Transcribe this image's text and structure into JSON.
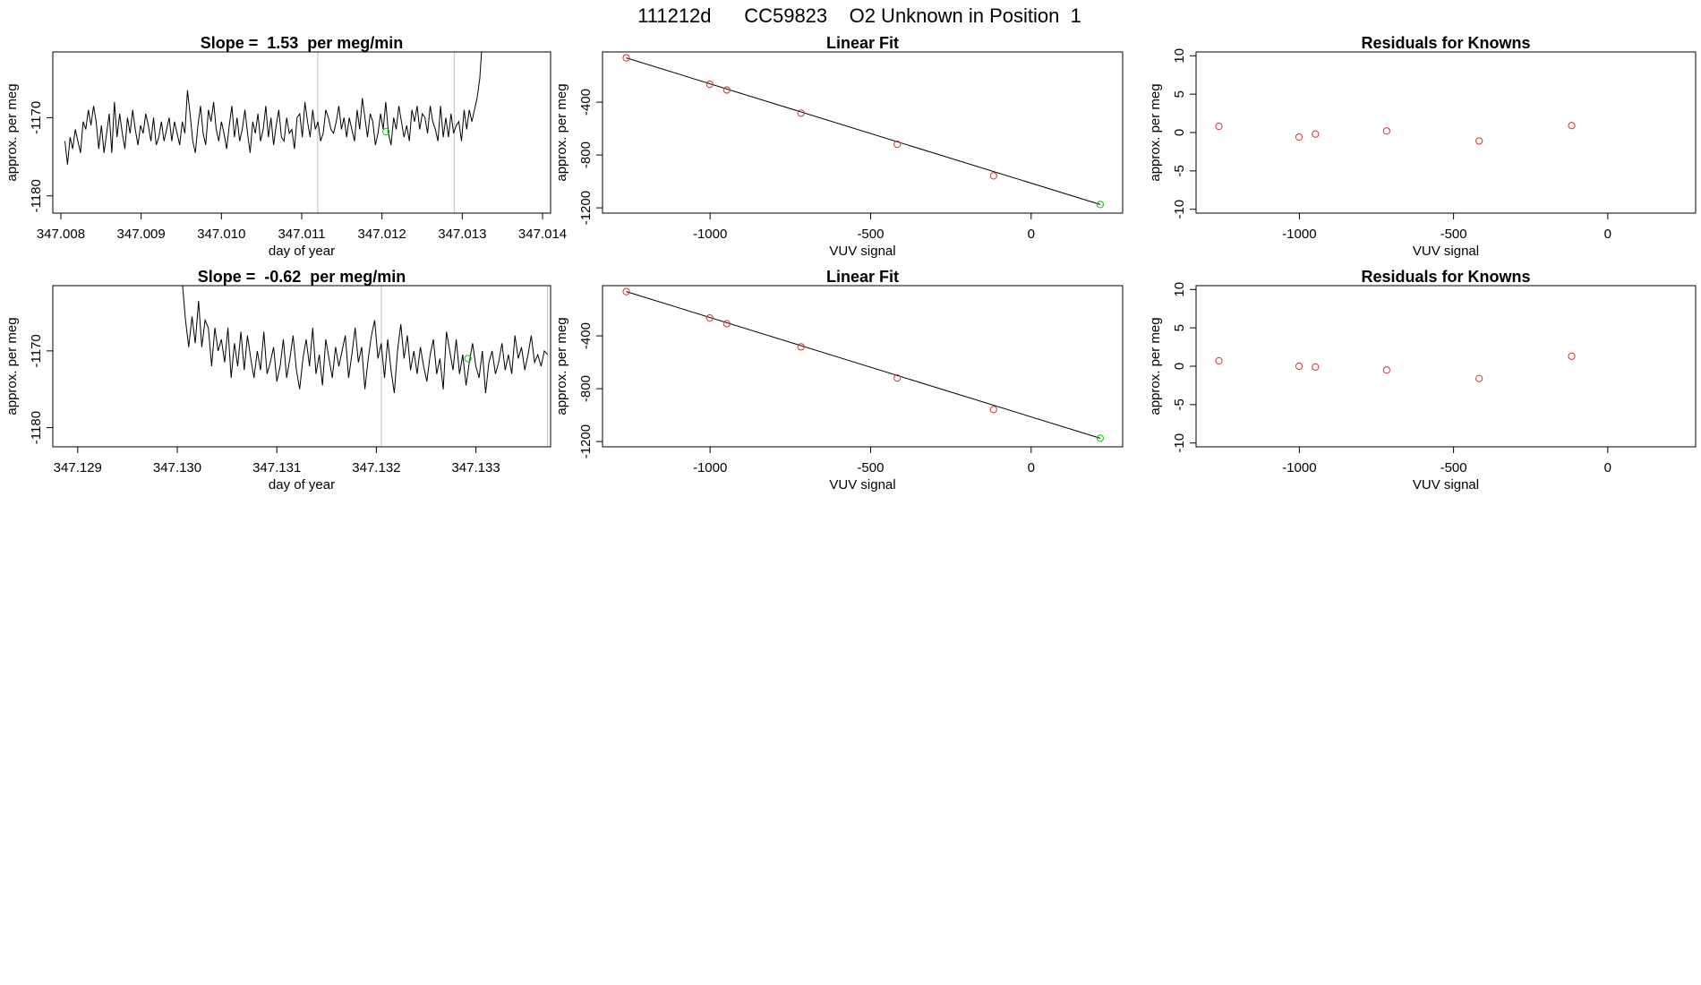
{
  "figure_title": "111212d      CC59823    O2 Unknown in Position  1",
  "colors": {
    "series": "#000000",
    "known_points": "#cd3333",
    "unknown_point": "#00cc00",
    "grid": "#bebebe",
    "frame": "#000000"
  },
  "chart_data": [
    {
      "type": "line",
      "title": "Slope =  1.53  per meg/min",
      "xlabel": "day of year",
      "ylabel": "approx. per meg",
      "xlim": [
        347.0079,
        347.0141
      ],
      "ylim": [
        -1182.2,
        -1161.6
      ],
      "xticks": [
        347.008,
        347.009,
        347.01,
        347.011,
        347.012,
        347.013,
        347.014
      ],
      "xtick_labels": [
        "347.008",
        "347.009",
        "347.010",
        "347.011",
        "347.012",
        "347.013",
        "347.014"
      ],
      "yticks": [
        -1180,
        -1170
      ],
      "ytick_labels": [
        "-1180",
        "-1170"
      ],
      "vlines": [
        347.0112,
        347.0129
      ],
      "series": [
        {
          "x_start": 347.00805,
          "x_end": 347.01325,
          "values": [
            -1173.0,
            -1176.0,
            -1172.5,
            -1174.0,
            -1171.5,
            -1173.0,
            -1174.5,
            -1170.5,
            -1171.5,
            -1169.0,
            -1171.0,
            -1168.5,
            -1170.5,
            -1174.0,
            -1171.0,
            -1174.5,
            -1172.0,
            -1169.5,
            -1174.5,
            -1168.0,
            -1172.5,
            -1169.5,
            -1172.0,
            -1174.0,
            -1170.0,
            -1172.0,
            -1169.0,
            -1171.5,
            -1173.5,
            -1171.0,
            -1172.0,
            -1169.5,
            -1171.0,
            -1173.0,
            -1170.0,
            -1173.5,
            -1172.5,
            -1170.5,
            -1173.0,
            -1171.5,
            -1170.0,
            -1173.0,
            -1170.5,
            -1172.0,
            -1173.5,
            -1170.5,
            -1172.0,
            -1166.5,
            -1169.5,
            -1173.0,
            -1174.5,
            -1171.0,
            -1168.5,
            -1172.0,
            -1173.5,
            -1169.0,
            -1170.5,
            -1168.0,
            -1171.5,
            -1173.0,
            -1170.5,
            -1172.0,
            -1174.0,
            -1171.0,
            -1168.5,
            -1172.5,
            -1170.0,
            -1173.0,
            -1171.5,
            -1169.0,
            -1172.0,
            -1174.5,
            -1170.5,
            -1172.0,
            -1169.5,
            -1173.0,
            -1171.5,
            -1168.5,
            -1172.5,
            -1170.0,
            -1173.5,
            -1171.0,
            -1169.0,
            -1172.5,
            -1173.0,
            -1170.0,
            -1172.0,
            -1171.5,
            -1174.0,
            -1170.0,
            -1169.5,
            -1172.5,
            -1168.0,
            -1170.5,
            -1172.5,
            -1169.0,
            -1171.5,
            -1170.5,
            -1173.0,
            -1172.0,
            -1169.0,
            -1170.0,
            -1171.5,
            -1172.0,
            -1170.5,
            -1168.5,
            -1171.5,
            -1170.0,
            -1172.5,
            -1170.0,
            -1171.5,
            -1173.0,
            -1169.0,
            -1171.5,
            -1167.5,
            -1170.0,
            -1172.5,
            -1169.5,
            -1170.5,
            -1173.5,
            -1172.0,
            -1169.5,
            -1171.5,
            -1168.0,
            -1172.0,
            -1173.5,
            -1170.0,
            -1171.5,
            -1168.5,
            -1170.5,
            -1172.5,
            -1171.0,
            -1173.0,
            -1169.0,
            -1170.5,
            -1168.5,
            -1171.5,
            -1169.5,
            -1170.0,
            -1172.0,
            -1168.5,
            -1170.5,
            -1171.5,
            -1173.0,
            -1168.5,
            -1172.5,
            -1170.0,
            -1172.5,
            -1169.5,
            -1172.0,
            -1171.0,
            -1170.5,
            -1173.0,
            -1169.0,
            -1171.5,
            -1169.0,
            -1170.5,
            -1169.0,
            -1167.5,
            -1165.0,
            -1160.0
          ]
        }
      ],
      "unknown_point": {
        "x": 347.01205,
        "y": -1171.8
      }
    },
    {
      "type": "scatter",
      "title": "Linear Fit",
      "xlabel": "VUV signal",
      "ylabel": "approx. per meg",
      "xlim": [
        -1335,
        285
      ],
      "ylim": [
        -1240,
        -20
      ],
      "xticks": [
        -1000,
        -500,
        0
      ],
      "xtick_labels": [
        "-1000",
        "-500",
        "0"
      ],
      "yticks": [
        -1200,
        -800,
        -400
      ],
      "ytick_labels": [
        "-1200",
        "-800",
        "-400"
      ],
      "fit_line": {
        "x": [
          -1261,
          215
        ],
        "y": [
          -65,
          -1175
        ]
      },
      "known_points": {
        "x": [
          -1261,
          -1001,
          -948,
          -717,
          -417,
          -117
        ],
        "y": [
          -65,
          -265,
          -308,
          -483,
          -719,
          -958
        ]
      },
      "unknown_point": {
        "x": 215,
        "y": -1175
      }
    },
    {
      "type": "scatter",
      "title": "Residuals for Knowns",
      "xlabel": "VUV signal",
      "ylabel": "approx. per meg",
      "xlim": [
        -1335,
        285
      ],
      "ylim": [
        -10.5,
        10.5
      ],
      "xticks": [
        -1000,
        -500,
        0
      ],
      "xtick_labels": [
        "-1000",
        "-500",
        "0"
      ],
      "yticks": [
        -10,
        -5,
        0,
        5,
        10
      ],
      "ytick_labels": [
        "-10",
        "-5",
        "0",
        "5",
        "10"
      ],
      "known_points": {
        "x": [
          -1261,
          -1001,
          -948,
          -717,
          -417,
          -117
        ],
        "y": [
          0.8,
          -0.6,
          -0.2,
          0.2,
          -1.1,
          0.9
        ]
      }
    },
    {
      "type": "line",
      "title": "Slope =  -0.62  per meg/min",
      "xlabel": "day of year",
      "ylabel": "approx. per meg",
      "xlim": [
        347.12875,
        347.13375
      ],
      "ylim": [
        -1182.5,
        -1161.5
      ],
      "xticks": [
        347.129,
        347.13,
        347.131,
        347.132,
        347.133
      ],
      "xtick_labels": [
        "347.129",
        "347.130",
        "347.131",
        "347.132",
        "347.133"
      ],
      "yticks": [
        -1180,
        -1170
      ],
      "ytick_labels": [
        "-1180",
        "-1170"
      ],
      "vlines": [
        347.13205,
        347.13372
      ],
      "series": [
        {
          "x_start": 347.13005,
          "x_end": 347.13372,
          "values": [
            -1161.0,
            -1166.0,
            -1169.5,
            -1165.5,
            -1169.0,
            -1163.5,
            -1169.5,
            -1166.0,
            -1167.0,
            -1172.0,
            -1167.0,
            -1170.0,
            -1168.5,
            -1171.5,
            -1167.0,
            -1173.5,
            -1169.0,
            -1172.0,
            -1167.5,
            -1172.5,
            -1168.0,
            -1171.0,
            -1173.5,
            -1170.0,
            -1172.5,
            -1167.5,
            -1173.0,
            -1171.5,
            -1169.5,
            -1174.0,
            -1172.0,
            -1168.5,
            -1173.5,
            -1171.0,
            -1168.0,
            -1172.5,
            -1175.0,
            -1171.0,
            -1168.5,
            -1172.0,
            -1167.0,
            -1173.0,
            -1170.5,
            -1174.5,
            -1168.5,
            -1171.0,
            -1173.5,
            -1169.5,
            -1172.0,
            -1170.0,
            -1168.0,
            -1173.5,
            -1170.5,
            -1167.0,
            -1171.5,
            -1169.5,
            -1175.0,
            -1171.0,
            -1168.0,
            -1166.0,
            -1171.0,
            -1169.0,
            -1173.5,
            -1168.5,
            -1172.5,
            -1175.5,
            -1170.0,
            -1166.5,
            -1171.0,
            -1168.0,
            -1172.5,
            -1170.0,
            -1173.0,
            -1169.5,
            -1172.0,
            -1174.0,
            -1170.5,
            -1168.5,
            -1173.0,
            -1171.0,
            -1175.0,
            -1167.5,
            -1170.0,
            -1172.5,
            -1168.5,
            -1173.0,
            -1170.5,
            -1174.5,
            -1171.5,
            -1169.0,
            -1172.0,
            -1173.5,
            -1170.0,
            -1175.5,
            -1171.5,
            -1170.0,
            -1173.0,
            -1171.5,
            -1169.0,
            -1172.5,
            -1170.5,
            -1173.0,
            -1168.0,
            -1171.0,
            -1169.5,
            -1172.5,
            -1170.5,
            -1168.0,
            -1171.5,
            -1170.5,
            -1172.0,
            -1170.0,
            -1170.5
          ]
        }
      ],
      "unknown_point": {
        "x": 347.13292,
        "y": -1171.0
      }
    },
    {
      "type": "scatter",
      "title": "Linear Fit",
      "xlabel": "VUV signal",
      "ylabel": "approx. per meg",
      "xlim": [
        -1335,
        285
      ],
      "ylim": [
        -1240,
        -20
      ],
      "xticks": [
        -1000,
        -500,
        0
      ],
      "xtick_labels": [
        "-1000",
        "-500",
        "0"
      ],
      "yticks": [
        -1200,
        -800,
        -400
      ],
      "ytick_labels": [
        "-1200",
        "-800",
        "-400"
      ],
      "fit_line": {
        "x": [
          -1261,
          215
        ],
        "y": [
          -65,
          -1175
        ]
      },
      "known_points": {
        "x": [
          -1261,
          -1001,
          -948,
          -717,
          -417,
          -117
        ],
        "y": [
          -65,
          -265,
          -308,
          -483,
          -719,
          -958
        ]
      },
      "unknown_point": {
        "x": 215,
        "y": -1175
      }
    },
    {
      "type": "scatter",
      "title": "Residuals for Knowns",
      "xlabel": "VUV signal",
      "ylabel": "approx. per meg",
      "xlim": [
        -1335,
        285
      ],
      "ylim": [
        -10.5,
        10.5
      ],
      "xticks": [
        -1000,
        -500,
        0
      ],
      "xtick_labels": [
        "-1000",
        "-500",
        "0"
      ],
      "yticks": [
        -10,
        -5,
        0,
        5,
        10
      ],
      "ytick_labels": [
        "-10",
        "-5",
        "0",
        "5",
        "10"
      ],
      "known_points": {
        "x": [
          -1261,
          -1001,
          -948,
          -717,
          -417,
          -117
        ],
        "y": [
          0.7,
          0.0,
          -0.1,
          -0.5,
          -1.6,
          1.3
        ]
      }
    }
  ]
}
